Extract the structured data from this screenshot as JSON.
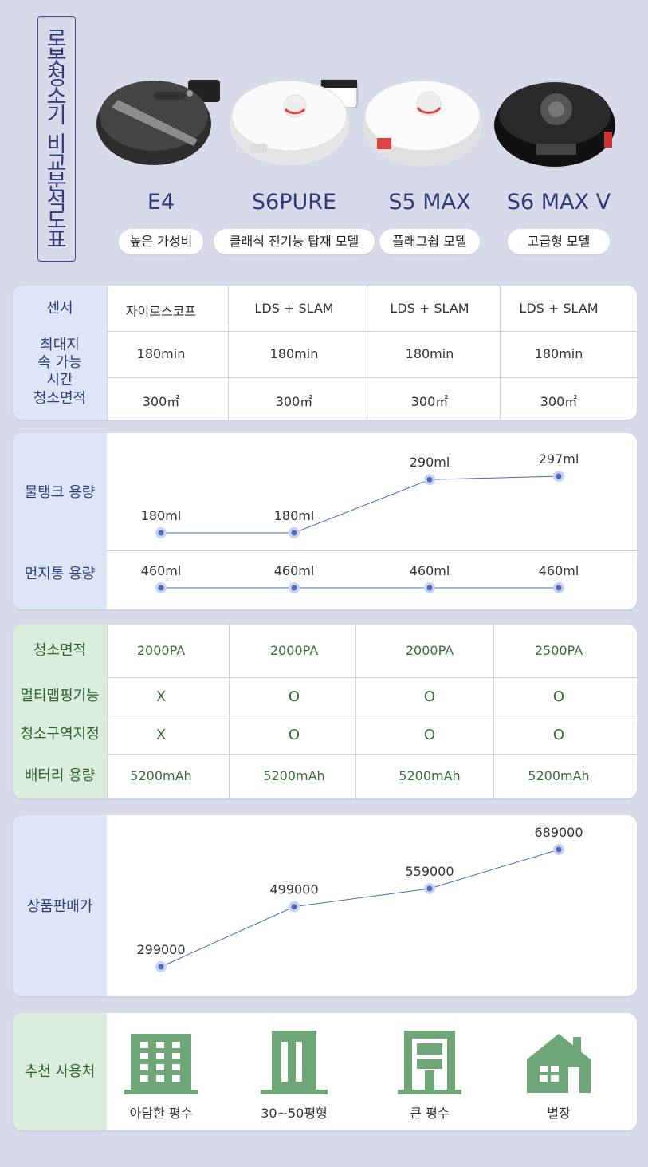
{
  "title_chars": [
    "로",
    "봇",
    "청",
    "소",
    "기",
    " ",
    "비",
    "교",
    "분",
    "석",
    "도",
    "표"
  ],
  "models": [
    {
      "name": "E4",
      "tag": "높은 가성비",
      "color": "dark"
    },
    {
      "name": "S6PURE",
      "tag": "클래식 전기능 탑재 모델",
      "color": "white"
    },
    {
      "name": "S5 MAX",
      "tag": "플래그쉽 모델",
      "color": "white"
    },
    {
      "name": "S6 MAX V",
      "tag": "고급형 모델",
      "color": "black"
    }
  ],
  "spec": {
    "rows": [
      {
        "label": "센서",
        "values": [
          "자이로스코프",
          "LDS + SLAM",
          "LDS + SLAM",
          "LDS + SLAM"
        ]
      },
      {
        "label": "최대지속 가능시간",
        "values": [
          "180min",
          "180min",
          "180min",
          "180min"
        ]
      },
      {
        "label": "청소면적",
        "values": [
          "300㎡",
          "300㎡",
          "300㎡",
          "300㎡"
        ]
      }
    ]
  },
  "chart_data": [
    {
      "type": "line",
      "categories": [
        "E4",
        "S6PURE",
        "S5 MAX",
        "S6 MAX V"
      ],
      "series": [
        {
          "name": "물탱크 용량",
          "values": [
            180,
            180,
            290,
            297
          ],
          "labels": [
            "180ml",
            "180ml",
            "290ml",
            "297ml"
          ]
        },
        {
          "name": "먼지통 용량",
          "values": [
            460,
            460,
            460,
            460
          ],
          "labels": [
            "460ml",
            "460ml",
            "460ml",
            "460ml"
          ]
        }
      ]
    },
    {
      "type": "line",
      "categories": [
        "E4",
        "S6PURE",
        "S5 MAX",
        "S6 MAX V"
      ],
      "series": [
        {
          "name": "상품판매가",
          "values": [
            299000,
            499000,
            559000,
            689000
          ],
          "labels": [
            "299000",
            "499000",
            "559000",
            "689000"
          ]
        }
      ]
    }
  ],
  "features": {
    "rows": [
      {
        "label": "청소면적",
        "values": [
          "2000PA",
          "2000PA",
          "2000PA",
          "2500PA"
        ]
      },
      {
        "label": "멀티맵핑기능",
        "values": [
          "X",
          "O",
          "O",
          "O"
        ]
      },
      {
        "label": "청소구역지정",
        "values": [
          "X",
          "O",
          "O",
          "O"
        ]
      },
      {
        "label": "배터리 용량",
        "values": [
          "5200mAh",
          "5200mAh",
          "5200mAh",
          "5200mAh"
        ]
      }
    ]
  },
  "usage": {
    "label": "추천 사용처",
    "items": [
      {
        "icon": "apartment-icon",
        "label": "아담한 평수"
      },
      {
        "icon": "office-building-icon",
        "label": "30~50평형"
      },
      {
        "icon": "tall-building-icon",
        "label": "큰 평수"
      },
      {
        "icon": "house-icon",
        "label": "별장"
      }
    ]
  },
  "colors": {
    "accent": "#3b4a87",
    "blue_panel": "#dce6f6",
    "green_panel": "#dbeedd",
    "green_icon": "#6fa677",
    "line": "#4f66bb"
  }
}
